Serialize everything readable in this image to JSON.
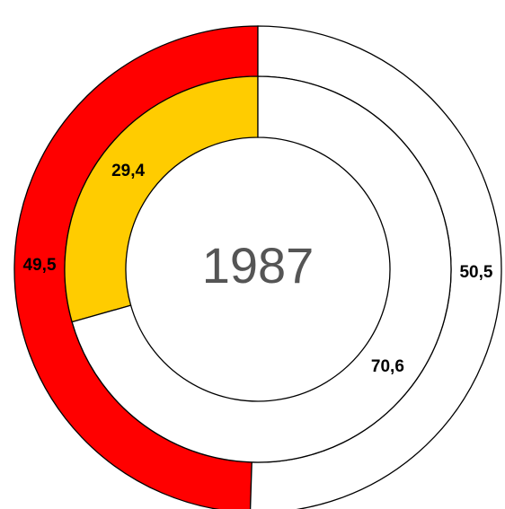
{
  "chart_data": {
    "type": "doughnut",
    "title": "1987",
    "series": [
      {
        "values": [
          49.5,
          50.5
        ],
        "value_labels": [
          "49,5",
          "50,5"
        ],
        "colors": [
          "#ff0000",
          "#ffffff"
        ]
      },
      {
        "values": [
          29.4,
          70.6
        ],
        "value_labels": [
          "29,4",
          "70,6"
        ],
        "colors": [
          "#ffcc00",
          "#ffffff"
        ]
      }
    ],
    "direction": "counterclockwise"
  }
}
